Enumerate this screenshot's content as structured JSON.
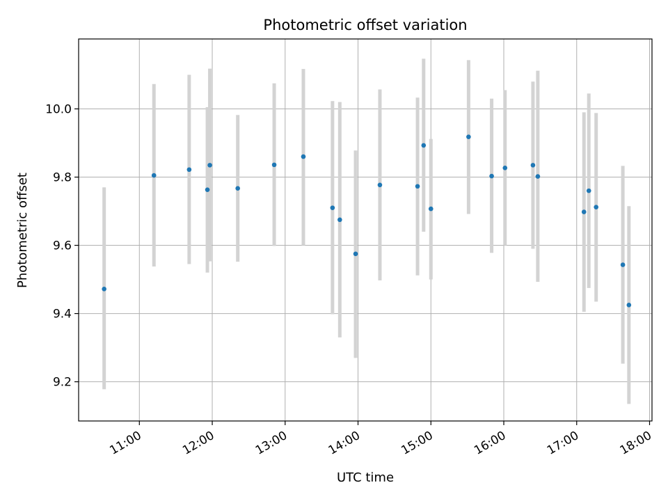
{
  "chart_data": {
    "type": "scatter",
    "title": "Photometric offset variation",
    "xlabel": "UTC time",
    "ylabel": "Photometric offset",
    "x_ticks": [
      "11:00",
      "12:00",
      "13:00",
      "14:00",
      "15:00",
      "16:00",
      "17:00",
      "18:00"
    ],
    "y_ticks": [
      "9.2",
      "9.4",
      "9.6",
      "9.8",
      "10.0"
    ],
    "xlim": [
      "10:10",
      "18:02"
    ],
    "ylim": [
      9.085,
      10.205
    ],
    "grid": true,
    "point_color": "#1f77b4",
    "errorbar_color": "#d3d3d3",
    "points": [
      {
        "x": "10:31",
        "y": 9.472,
        "lo": 9.178,
        "hi": 9.77
      },
      {
        "x": "11:12",
        "y": 9.805,
        "lo": 9.538,
        "hi": 10.073
      },
      {
        "x": "11:41",
        "y": 9.822,
        "lo": 9.545,
        "hi": 10.1
      },
      {
        "x": "11:56",
        "y": 9.763,
        "lo": 9.52,
        "hi": 10.005
      },
      {
        "x": "11:58",
        "y": 9.835,
        "lo": 9.553,
        "hi": 10.118
      },
      {
        "x": "12:21",
        "y": 9.767,
        "lo": 9.552,
        "hi": 9.982
      },
      {
        "x": "12:51",
        "y": 9.836,
        "lo": 9.598,
        "hi": 10.075
      },
      {
        "x": "13:15",
        "y": 9.86,
        "lo": 9.6,
        "hi": 10.117
      },
      {
        "x": "13:39",
        "y": 9.71,
        "lo": 9.398,
        "hi": 10.023
      },
      {
        "x": "13:45",
        "y": 9.675,
        "lo": 9.33,
        "hi": 10.02
      },
      {
        "x": "13:58",
        "y": 9.575,
        "lo": 9.27,
        "hi": 9.878
      },
      {
        "x": "14:18",
        "y": 9.777,
        "lo": 9.497,
        "hi": 10.057
      },
      {
        "x": "14:49",
        "y": 9.773,
        "lo": 9.512,
        "hi": 10.033
      },
      {
        "x": "14:54",
        "y": 9.893,
        "lo": 9.64,
        "hi": 10.147
      },
      {
        "x": "15:00",
        "y": 9.707,
        "lo": 9.5,
        "hi": 9.912
      },
      {
        "x": "15:31",
        "y": 9.918,
        "lo": 9.692,
        "hi": 10.143
      },
      {
        "x": "15:50",
        "y": 9.803,
        "lo": 9.578,
        "hi": 10.03
      },
      {
        "x": "16:01",
        "y": 9.827,
        "lo": 9.6,
        "hi": 10.055
      },
      {
        "x": "16:24",
        "y": 9.835,
        "lo": 9.59,
        "hi": 10.08
      },
      {
        "x": "16:28",
        "y": 9.802,
        "lo": 9.493,
        "hi": 10.112
      },
      {
        "x": "17:06",
        "y": 9.698,
        "lo": 9.405,
        "hi": 9.99
      },
      {
        "x": "17:10",
        "y": 9.76,
        "lo": 9.475,
        "hi": 10.045
      },
      {
        "x": "17:16",
        "y": 9.712,
        "lo": 9.435,
        "hi": 9.988
      },
      {
        "x": "17:38",
        "y": 9.543,
        "lo": 9.253,
        "hi": 9.833
      },
      {
        "x": "17:43",
        "y": 9.425,
        "lo": 9.135,
        "hi": 9.715
      }
    ]
  }
}
